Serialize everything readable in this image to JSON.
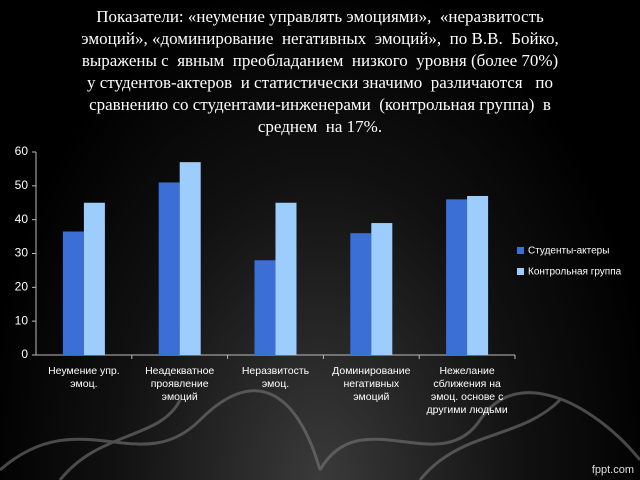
{
  "title_lines": [
    "Показатели: «неумение управлять эмоциями»,  «неразвитость",
    "эмоций», «доминирование  негативных  эмоций»,  по В.В.  Бойко,",
    "выражены с  явным  преобладанием  низкого  уровня (более 70%)",
    "у студентов-актеров  и статистически значимо  различаются   по",
    "сравнению со студентами-инженерами  (контрольная группа)  в",
    "среднем  на 17%."
  ],
  "chart_data": {
    "type": "bar",
    "categories": [
      "Неумение упр. эмоц.",
      "Неадекватное проявление эмоций",
      "Неразвитость эмоц.",
      "Доминирование негативных эмоций",
      "Нежелание сближения на эмоц. основе с другими людьми"
    ],
    "series": [
      {
        "name": "Студенты-актеры",
        "color": "#3b6fd6",
        "values": [
          36.5,
          51,
          28,
          36,
          46
        ]
      },
      {
        "name": "Контрольная группа",
        "color": "#9dcdfc",
        "values": [
          45,
          57,
          45,
          39,
          47
        ]
      }
    ],
    "ylim": [
      0,
      60
    ],
    "yticks": [
      0,
      10,
      20,
      30,
      40,
      50,
      60
    ],
    "grid": false,
    "legend": "right"
  },
  "watermark": "fppt.com"
}
